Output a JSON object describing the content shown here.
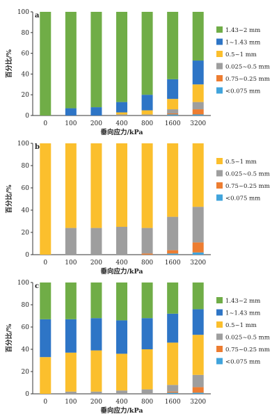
{
  "colors": {
    "1.43~2 mm": "#70ad47",
    "1~1.43 mm": "#2e75c6",
    "0.5~1 mm": "#fbbf2d",
    "0.025~0.5 mm": "#9e9e9e",
    "0.75~0.25 mm": "#ed7d31",
    "<0.075 mm": "#41a4dc"
  },
  "chart_data": [
    {
      "type": "bar",
      "stacked": true,
      "panel_label": "a",
      "categories": [
        "0",
        "100",
        "200",
        "400",
        "800",
        "1600",
        "3200"
      ],
      "xlabel": "垂向应力/kPa",
      "ylabel": "百分比/%",
      "ylim": [
        0,
        100
      ],
      "yticks": [
        0,
        20,
        40,
        60,
        80,
        100
      ],
      "legend_position": "right",
      "legend_order": [
        "1.43~2 mm",
        "1~1.43 mm",
        "0.5~1 mm",
        "0.025~0.5 mm",
        "0.75~0.25 mm",
        "<0.075 mm"
      ],
      "series": [
        {
          "name": "<0.075 mm",
          "values": [
            0,
            0,
            0,
            0,
            0,
            1,
            1
          ]
        },
        {
          "name": "0.75~0.25 mm",
          "values": [
            0,
            0,
            0,
            0,
            0,
            1,
            5
          ]
        },
        {
          "name": "0.025~0.5 mm",
          "values": [
            0,
            0,
            0,
            1,
            1,
            4,
            7
          ]
        },
        {
          "name": "0.5~1 mm",
          "values": [
            0,
            0,
            0,
            2,
            4,
            10,
            17
          ]
        },
        {
          "name": "1~1.43 mm",
          "values": [
            0,
            7,
            8,
            10,
            15,
            19,
            23
          ]
        },
        {
          "name": "1.43~2 mm",
          "values": [
            100,
            93,
            92,
            87,
            80,
            65,
            47
          ]
        }
      ]
    },
    {
      "type": "bar",
      "stacked": true,
      "panel_label": "b",
      "categories": [
        "0",
        "100",
        "200",
        "400",
        "800",
        "1600",
        "3200"
      ],
      "xlabel": "垂向应力/kPa",
      "ylabel": "百分比/%",
      "ylim": [
        0,
        100
      ],
      "yticks": [
        0,
        20,
        40,
        60,
        80,
        100
      ],
      "legend_position": "right",
      "legend_order": [
        "0.5~1 mm",
        "0.025~0.5 mm",
        "0.75~0.25 mm",
        "<0.075 mm"
      ],
      "series": [
        {
          "name": "<0.075 mm",
          "values": [
            0,
            0,
            0,
            0,
            0,
            1,
            2
          ]
        },
        {
          "name": "0.75~0.25 mm",
          "values": [
            0,
            0,
            0,
            0,
            1,
            3,
            9
          ]
        },
        {
          "name": "0.025~0.5 mm",
          "values": [
            0,
            24,
            24,
            25,
            23,
            30,
            32
          ]
        },
        {
          "name": "0.5~1 mm",
          "values": [
            100,
            76,
            76,
            75,
            76,
            66,
            57
          ]
        }
      ]
    },
    {
      "type": "bar",
      "stacked": true,
      "panel_label": "c",
      "categories": [
        "0",
        "100",
        "200",
        "400",
        "800",
        "1600",
        "3200"
      ],
      "xlabel": "垂向应力/kPa",
      "ylabel": "百分比/%",
      "ylim": [
        0,
        100
      ],
      "yticks": [
        0,
        20,
        40,
        60,
        80,
        100
      ],
      "legend_position": "right",
      "legend_order": [
        "1.43~2 mm",
        "1~1.43 mm",
        "0.5~1 mm",
        "0.025~0.5 mm",
        "0.75~0.25 mm",
        "<0.075 mm"
      ],
      "series": [
        {
          "name": "<0.075 mm",
          "values": [
            0,
            0,
            0,
            0,
            0,
            1,
            1
          ]
        },
        {
          "name": "0.75~0.25 mm",
          "values": [
            0,
            0,
            0,
            0,
            0,
            1,
            5
          ]
        },
        {
          "name": "0.025~0.5 mm",
          "values": [
            0,
            2,
            2,
            3,
            4,
            6,
            11
          ]
        },
        {
          "name": "0.5~1 mm",
          "values": [
            33,
            35,
            37,
            33,
            36,
            38,
            36
          ]
        },
        {
          "name": "1~1.43 mm",
          "values": [
            34,
            30,
            29,
            30,
            28,
            26,
            23
          ]
        },
        {
          "name": "1.43~2 mm",
          "values": [
            33,
            33,
            32,
            34,
            32,
            28,
            24
          ]
        }
      ]
    }
  ]
}
